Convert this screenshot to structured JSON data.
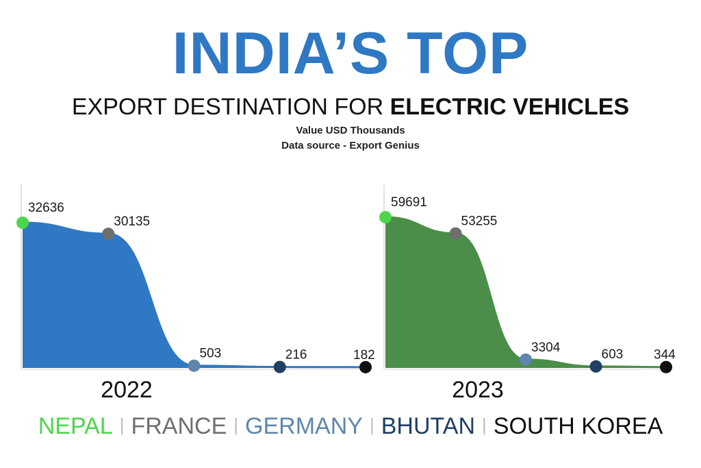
{
  "header": {
    "title": "INDIA’S TOP",
    "subtitle_plain": "EXPORT DESTINATION FOR ",
    "subtitle_bold": "ELECTRIC VEHICLES",
    "note_units": "Value USD Thousands",
    "note_source": "Data source - Export Genius"
  },
  "legend": [
    {
      "label": "NEPAL",
      "color": "#4cd64a"
    },
    {
      "label": "FRANCE",
      "color": "#6f6f6f"
    },
    {
      "label": "GERMANY",
      "color": "#5f86ad"
    },
    {
      "label": "BHUTAN",
      "color": "#1f3f63"
    },
    {
      "label": "SOUTH KOREA",
      "color": "#111111"
    }
  ],
  "chart_data": [
    {
      "type": "area",
      "xlabel": "2022",
      "categories": [
        "NEPAL",
        "FRANCE",
        "GERMANY",
        "BHUTAN",
        "SOUTH KOREA"
      ],
      "values": [
        32636,
        30135,
        503,
        216,
        182
      ],
      "data_labels": [
        "32636",
        "30135",
        "503",
        "216",
        "182"
      ],
      "fill_color": "#2f78c4",
      "point_colors": [
        "#4cd64a",
        "#6f6f6f",
        "#5f86ad",
        "#1f3f63",
        "#111111"
      ],
      "grid": false
    },
    {
      "type": "area",
      "xlabel": "2023",
      "categories": [
        "NEPAL",
        "FRANCE",
        "GERMANY",
        "BHUTAN",
        "SOUTH KOREA"
      ],
      "values": [
        59691,
        53255,
        3304,
        603,
        344
      ],
      "data_labels": [
        "59691",
        "53255",
        "3304",
        "603",
        "344"
      ],
      "fill_color": "#4a8e4a",
      "point_colors": [
        "#4cd64a",
        "#6f6f6f",
        "#5f86ad",
        "#1f3f63",
        "#111111"
      ],
      "grid": false
    }
  ]
}
